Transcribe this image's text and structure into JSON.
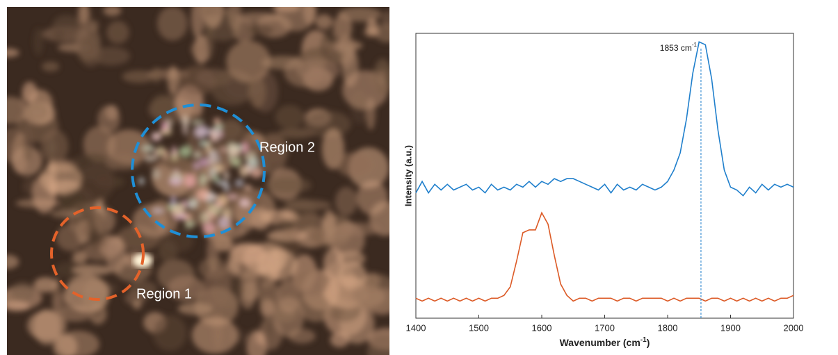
{
  "image": {
    "regions": [
      {
        "label": "Region 1",
        "color": "#e4622a"
      },
      {
        "label": "Region 2",
        "color": "#1f8fd6"
      }
    ]
  },
  "chart_data": {
    "type": "line",
    "xlabel": {
      "before": "Wavenumber (cm",
      "sup": "-1",
      "after": ")"
    },
    "ylabel": "Intensity (a.u.)",
    "annotation": {
      "value": 1853,
      "text": "1853 cm",
      "sup": "-1"
    },
    "x": [
      1400,
      1410,
      1420,
      1430,
      1440,
      1450,
      1460,
      1470,
      1480,
      1490,
      1500,
      1510,
      1520,
      1530,
      1540,
      1550,
      1560,
      1570,
      1580,
      1590,
      1600,
      1610,
      1620,
      1630,
      1640,
      1650,
      1660,
      1670,
      1680,
      1690,
      1700,
      1710,
      1720,
      1730,
      1740,
      1750,
      1760,
      1770,
      1780,
      1790,
      1800,
      1810,
      1820,
      1830,
      1840,
      1850,
      1860,
      1870,
      1880,
      1890,
      1900,
      1910,
      1920,
      1930,
      1940,
      1950,
      1960,
      1970,
      1980,
      1990,
      2000
    ],
    "series": [
      {
        "color": "#1f7fcc",
        "values": [
          44,
          48,
          44,
          47,
          45,
          47,
          45,
          46,
          47,
          45,
          46,
          44,
          47,
          45,
          46,
          45,
          47,
          46,
          48,
          46,
          48,
          47,
          49,
          48,
          49,
          49,
          48,
          47,
          46,
          45,
          47,
          44,
          47,
          45,
          46,
          45,
          47,
          46,
          45,
          46,
          48,
          52,
          58,
          70,
          86,
          97,
          96,
          84,
          66,
          52,
          46,
          45,
          43,
          46,
          44,
          47,
          45,
          47,
          46,
          47,
          46
        ]
      },
      {
        "color": "#dc5a26",
        "values": [
          7,
          6,
          7,
          6,
          7,
          6,
          7,
          6,
          7,
          6,
          7,
          6,
          7,
          7,
          8,
          11,
          20,
          30,
          31,
          31,
          37,
          33,
          22,
          12,
          8,
          6,
          7,
          7,
          6,
          7,
          7,
          7,
          6,
          7,
          7,
          6,
          7,
          7,
          7,
          7,
          6,
          7,
          6,
          7,
          7,
          7,
          6,
          7,
          7,
          6,
          7,
          6,
          7,
          6,
          7,
          6,
          7,
          6,
          7,
          7,
          8
        ]
      }
    ],
    "xlim": [
      1400,
      2000
    ],
    "ylim": [
      0,
      100
    ],
    "xticks": [
      1400,
      1500,
      1600,
      1700,
      1800,
      1900,
      2000
    ]
  }
}
